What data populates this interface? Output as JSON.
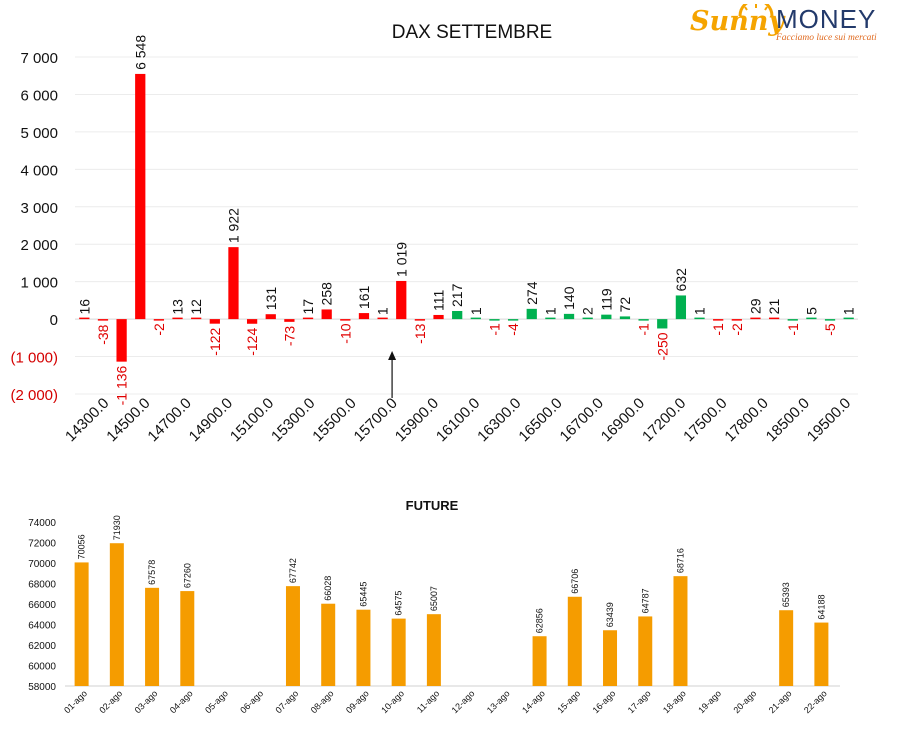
{
  "logo": {
    "brand_a": "Sunny",
    "brand_b": "MONEY",
    "tagline": "Facciamo luce sui mercati"
  },
  "chart_data": [
    {
      "type": "bar",
      "title": "DAX SETTEMBRE",
      "ylim": [
        -2000,
        7000
      ],
      "yticks": [
        7000,
        6000,
        5000,
        4000,
        3000,
        2000,
        1000,
        0,
        -1000,
        -2000
      ],
      "ytick_labels": [
        "7 000",
        "6 000",
        "5 000",
        "4 000",
        "3 000",
        "2 000",
        "1 000",
        "0",
        "(1 000)",
        "(2 000)"
      ],
      "negative_tick_color": "#d40000",
      "xtick_labels": [
        "14300.0",
        "14500.0",
        "14700.0",
        "14900.0",
        "15100.0",
        "15300.0",
        "15500.0",
        "15700.0",
        "15900.0",
        "16100.0",
        "16300.0",
        "16500.0",
        "16700.0",
        "16900.0",
        "17200.0",
        "17500.0",
        "17800.0",
        "18500.0",
        "19500.0"
      ],
      "colors": {
        "red": "#ff0000",
        "green": "#00b050"
      },
      "bars": [
        {
          "value": 16,
          "label": "16",
          "color": "red"
        },
        {
          "value": -38,
          "label": "-38",
          "color": "red"
        },
        {
          "value": -1136,
          "label": "-1 136",
          "color": "red"
        },
        {
          "value": 6548,
          "label": "6 548",
          "color": "red"
        },
        {
          "value": -2,
          "label": "-2",
          "color": "red"
        },
        {
          "value": 13,
          "label": "13",
          "color": "red"
        },
        {
          "value": 12,
          "label": "12",
          "color": "red"
        },
        {
          "value": -122,
          "label": "-122",
          "color": "red"
        },
        {
          "value": 1922,
          "label": "1 922",
          "color": "red"
        },
        {
          "value": -124,
          "label": "-124",
          "color": "red"
        },
        {
          "value": 131,
          "label": "131",
          "color": "red"
        },
        {
          "value": -73,
          "label": "-73",
          "color": "red"
        },
        {
          "value": 17,
          "label": "17",
          "color": "red"
        },
        {
          "value": 258,
          "label": "258",
          "color": "red"
        },
        {
          "value": -10,
          "label": "-10",
          "color": "red"
        },
        {
          "value": 161,
          "label": "161",
          "color": "red"
        },
        {
          "value": 1,
          "label": "1",
          "color": "red"
        },
        {
          "value": 1019,
          "label": "1 019",
          "color": "red"
        },
        {
          "value": -13,
          "label": "-13",
          "color": "red"
        },
        {
          "value": 111,
          "label": "111",
          "color": "red"
        },
        {
          "value": 217,
          "label": "217",
          "color": "green"
        },
        {
          "value": 1,
          "label": "1",
          "color": "green"
        },
        {
          "value": -1,
          "label": "-1",
          "color": "green"
        },
        {
          "value": -4,
          "label": "-4",
          "color": "green"
        },
        {
          "value": 274,
          "label": "274",
          "color": "green"
        },
        {
          "value": 1,
          "label": "1",
          "color": "green"
        },
        {
          "value": 140,
          "label": "140",
          "color": "green"
        },
        {
          "value": 2,
          "label": "2",
          "color": "green"
        },
        {
          "value": 119,
          "label": "119",
          "color": "green"
        },
        {
          "value": 72,
          "label": "72",
          "color": "green"
        },
        {
          "value": -1,
          "label": "-1",
          "color": "green"
        },
        {
          "value": -250,
          "label": "-250",
          "color": "green"
        },
        {
          "value": 632,
          "label": "632",
          "color": "green"
        },
        {
          "value": 1,
          "label": "1",
          "color": "green"
        },
        {
          "value": -1,
          "label": "-1",
          "color": "red"
        },
        {
          "value": -2,
          "label": "-2",
          "color": "red"
        },
        {
          "value": 29,
          "label": "29",
          "color": "red"
        },
        {
          "value": 21,
          "label": "21",
          "color": "red"
        },
        {
          "value": -1,
          "label": "-1",
          "color": "green"
        },
        {
          "value": 5,
          "label": "5",
          "color": "green"
        },
        {
          "value": -5,
          "label": "-5",
          "color": "green"
        },
        {
          "value": 1,
          "label": "1",
          "color": "green"
        }
      ],
      "annotations": [
        {
          "type": "arrow",
          "at_tick": "15700.0"
        }
      ]
    },
    {
      "type": "bar",
      "title": "FUTURE",
      "ylim": [
        58000,
        74000
      ],
      "yticks": [
        74000,
        72000,
        70000,
        68000,
        66000,
        64000,
        62000,
        60000,
        58000
      ],
      "color": "#f59c00",
      "categories": [
        "01-ago",
        "02-ago",
        "03-ago",
        "04-ago",
        "05-ago",
        "06-ago",
        "07-ago",
        "08-ago",
        "09-ago",
        "10-ago",
        "11-ago",
        "12-ago",
        "13-ago",
        "14-ago",
        "15-ago",
        "16-ago",
        "17-ago",
        "18-ago",
        "19-ago",
        "20-ago",
        "21-ago",
        "22-ago"
      ],
      "values": [
        70056,
        71930,
        67578,
        67260,
        null,
        null,
        67742,
        66028,
        65445,
        64575,
        65007,
        null,
        null,
        62856,
        66706,
        63439,
        64787,
        68716,
        null,
        null,
        65393,
        64188
      ]
    }
  ]
}
